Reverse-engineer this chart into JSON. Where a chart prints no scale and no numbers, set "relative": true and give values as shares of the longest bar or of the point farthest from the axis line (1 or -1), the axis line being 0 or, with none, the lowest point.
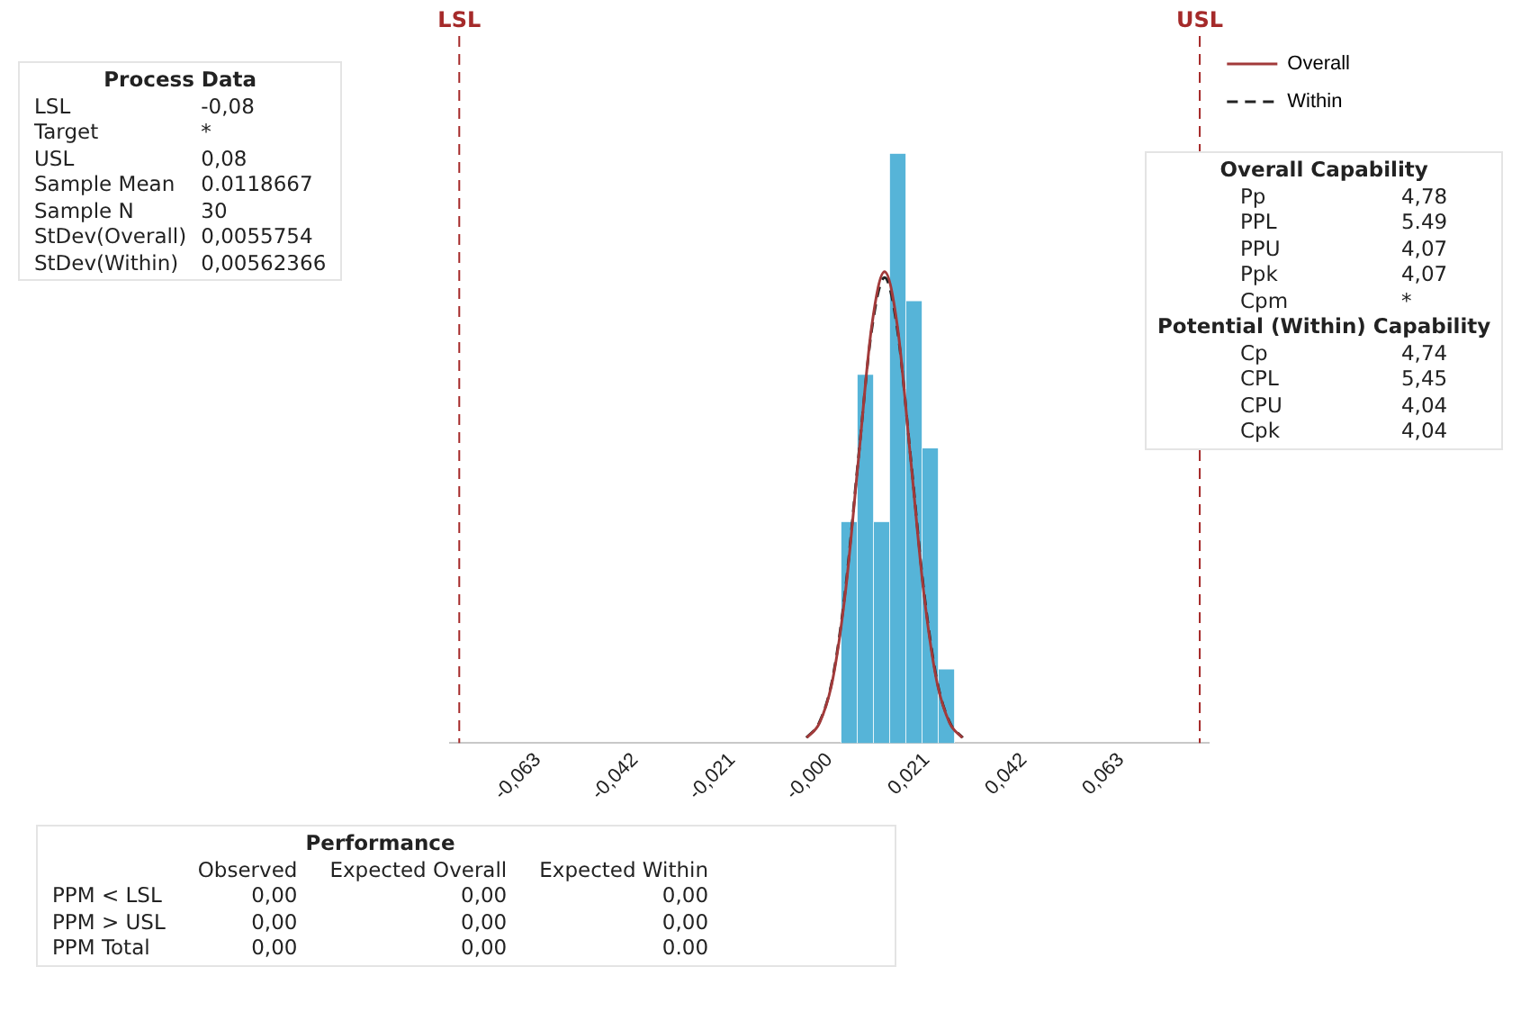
{
  "chart_data": {
    "type": "histogram",
    "relative": true,
    "bins": [
      0.0025,
      0.006,
      0.0095,
      0.013,
      0.0165,
      0.02,
      0.0235,
      0.027
    ],
    "values": [
      0.375,
      0.625,
      0.375,
      1,
      0.75,
      0.5,
      0.125
    ],
    "color": "#56b4d8",
    "series": [
      {
        "type": "line",
        "name": "Overall",
        "color": "#a23a3a",
        "line_style": "solid",
        "x": [
          -0.0049,
          -0.0021,
          0.0007,
          0.0035,
          0.0063,
          0.0091,
          0.0119,
          0.0147,
          0.0175,
          0.0203,
          0.0231,
          0.0259,
          0.0287
        ],
        "values": [
          0.009,
          0.035,
          0.108,
          0.26,
          0.485,
          0.706,
          0.8,
          0.706,
          0.485,
          0.26,
          0.108,
          0.035,
          0.009
        ]
      },
      {
        "type": "line",
        "name": "Within",
        "color": "#222222",
        "line_style": "dashed",
        "x": [
          -0.005,
          -0.0022,
          0.0006,
          0.0034,
          0.0062,
          0.0091,
          0.0119,
          0.0147,
          0.0176,
          0.0204,
          0.0232,
          0.026,
          0.0288
        ],
        "values": [
          0.009,
          0.035,
          0.107,
          0.258,
          0.48,
          0.7,
          0.79,
          0.7,
          0.48,
          0.258,
          0.107,
          0.035,
          0.009
        ]
      }
    ],
    "xlim": [
      -0.082,
      0.082
    ],
    "xticks": [
      {
        "value": -0.063,
        "label": "-0,063"
      },
      {
        "value": -0.042,
        "label": "-0,042"
      },
      {
        "value": -0.021,
        "label": "-0,021"
      },
      {
        "value": 0,
        "label": "-0,000"
      },
      {
        "value": 0.021,
        "label": "0,021"
      },
      {
        "value": 0.042,
        "label": "0,042"
      },
      {
        "value": 0.063,
        "label": "0,063"
      }
    ],
    "tick_labels": "x",
    "grid": false,
    "legend": "top right",
    "marker": "none",
    "ref_lines": [
      {
        "axis": "x",
        "value": -0.08,
        "label": "LSL",
        "color": "#a52a2a",
        "line_style": "dashed"
      },
      {
        "axis": "x",
        "value": 0.08,
        "label": "USL",
        "color": "#a52a2a",
        "line_style": "dashed"
      }
    ],
    "annotations": [
      "Process Data",
      "LSL\t-0,08",
      "Target\t*",
      "USL\t0,08",
      "Sample Mean\t0.0118667",
      "Sample N\t30",
      "StDev(Overall)\t0,0055754",
      "StDev(Within)\t0,00562366",
      "Overall Capability",
      "Pp\t4,78",
      "PPL\t5.49",
      "PPU\t4,07",
      "Ppk\t4,07",
      "Cpm\t*",
      "Potential (Within) Capability",
      "Cp\t4,74",
      "CPL\t5,45",
      "CPU\t4,04",
      "Cpk\t4,04",
      "Performance",
      "\tObserved\tExpected Overall\tExpected Within",
      "PPM < LSL\t0,00\t0,00\t0,00",
      "PPM > USL\t0,00\t0,00\t0,00",
      "PPM Total\t0,00\t0,00\t0.00"
    ]
  }
}
